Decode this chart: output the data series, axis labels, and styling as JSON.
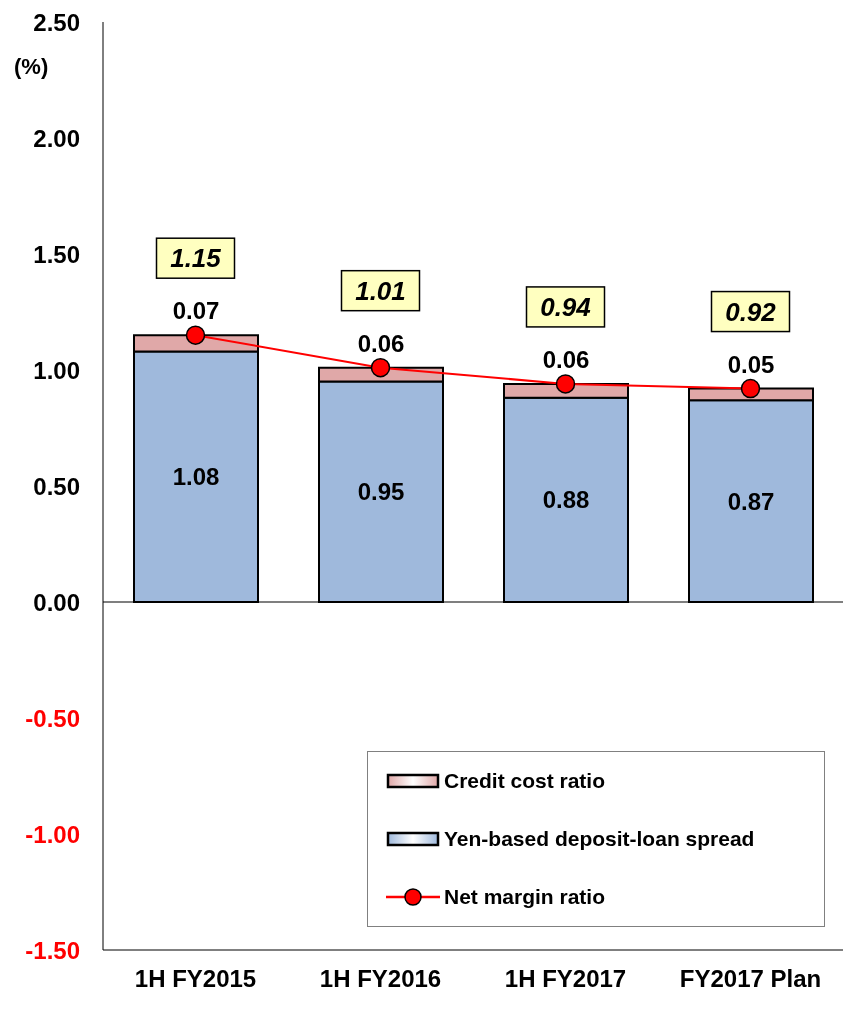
{
  "chart_data": {
    "type": "bar",
    "stacked": true,
    "ylabel": "(%)",
    "categories": [
      "1H FY2015",
      "1H FY2016",
      "1H FY2017",
      "FY2017 Plan"
    ],
    "series": [
      {
        "name": "Yen-based deposit-loan spread",
        "color": "#9fb9dc",
        "values": [
          1.08,
          0.95,
          0.88,
          0.87
        ]
      },
      {
        "name": "Credit cost ratio",
        "color": "#e0a8a8",
        "values": [
          0.07,
          0.06,
          0.06,
          0.05
        ]
      },
      {
        "name": "Net margin ratio",
        "type": "line",
        "color": "#ff0000",
        "marker": "circle",
        "values": [
          1.15,
          1.01,
          0.94,
          0.92
        ]
      }
    ],
    "ylim": [
      -1.5,
      2.5
    ],
    "yticks": [
      {
        "value": -1.5,
        "label": "-1.50"
      },
      {
        "value": -1,
        "label": "-1.00"
      },
      {
        "value": -0.5,
        "label": "-0.50"
      },
      {
        "value": 0,
        "label": "0.00"
      },
      {
        "value": 0.5,
        "label": "0.50"
      },
      {
        "value": 1,
        "label": "1.00"
      },
      {
        "value": 1.5,
        "label": "1.50"
      },
      {
        "value": 2,
        "label": "2.00"
      },
      {
        "value": 2.5,
        "label": "2.50"
      }
    ],
    "ref_lines": [
      {
        "axis": "y",
        "value": 0,
        "color": "#000000"
      }
    ],
    "grid": false,
    "legend": "bottom right",
    "data_labels": true
  }
}
